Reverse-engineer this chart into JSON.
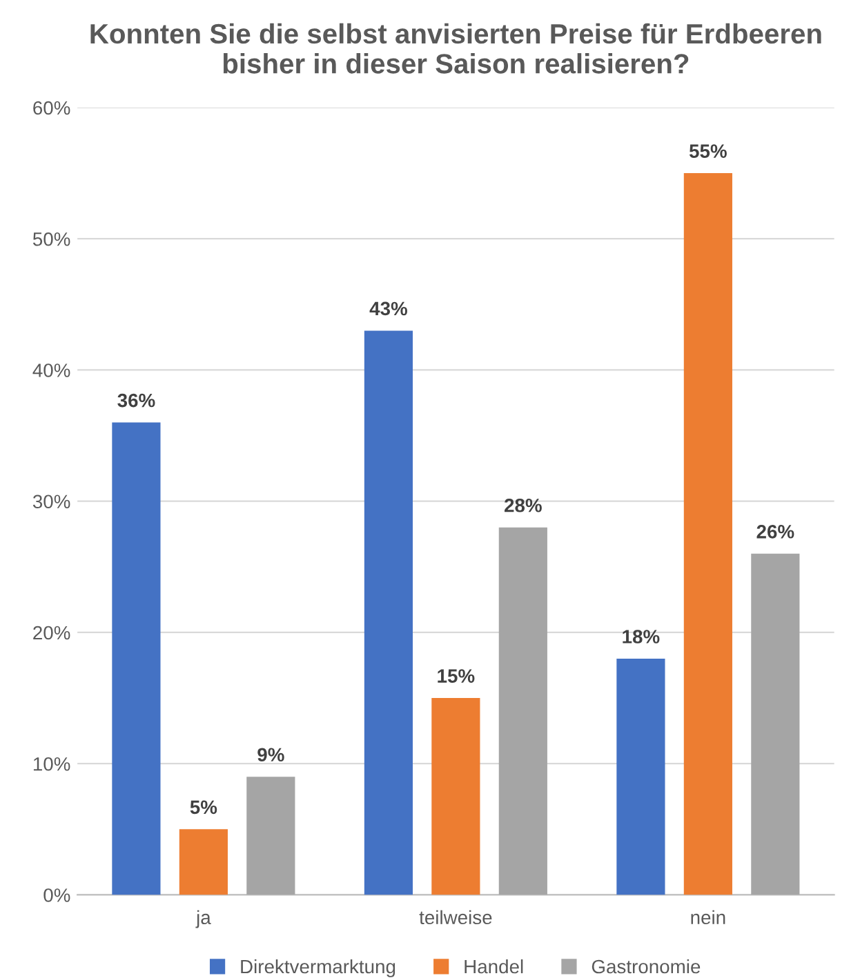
{
  "chart_data": {
    "type": "bar",
    "title": "Konnten Sie die selbst anvisierten Preise für Erdbeeren bisher in dieser Saison realisieren?",
    "categories": [
      "ja",
      "teilweise",
      "nein"
    ],
    "series": [
      {
        "name": "Direktvermarktung",
        "color": "#4472c4",
        "values": [
          36,
          43,
          18
        ],
        "value_labels": [
          "36%",
          "43%",
          "18%"
        ]
      },
      {
        "name": "Handel",
        "color": "#ed7d31",
        "values": [
          5,
          15,
          55
        ],
        "value_labels": [
          "5%",
          "15%",
          "55%"
        ]
      },
      {
        "name": "Gastronomie",
        "color": "#a5a5a5",
        "values": [
          9,
          28,
          26
        ],
        "value_labels": [
          "9%",
          "28%",
          "26%"
        ]
      }
    ],
    "ylim": [
      0,
      60
    ],
    "yticks": [
      {
        "value": 0,
        "label": "0%"
      },
      {
        "value": 10,
        "label": "10%"
      },
      {
        "value": 20,
        "label": "20%"
      },
      {
        "value": 30,
        "label": "30%"
      },
      {
        "value": 40,
        "label": "40%"
      },
      {
        "value": 50,
        "label": "50%"
      },
      {
        "value": 60,
        "label": "60%"
      }
    ],
    "grid": "y",
    "legend": "bottom"
  }
}
